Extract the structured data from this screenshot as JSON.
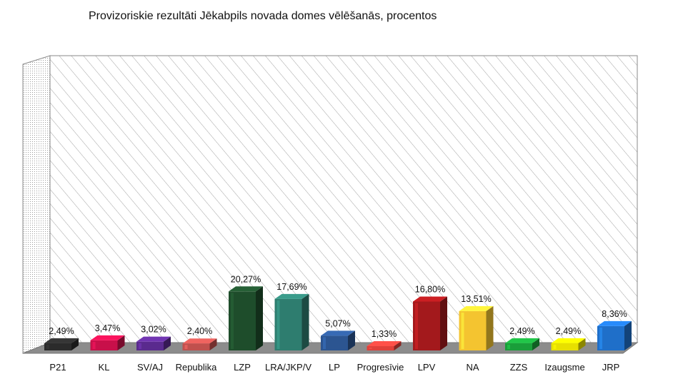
{
  "chart_data": {
    "type": "bar",
    "title": "Provizoriskie rezultāti Jēkabpils novada domes vēlēšanās, procentos",
    "xlabel": "",
    "ylabel": "",
    "ylim": [
      0,
      100
    ],
    "grid": false,
    "legend": "none",
    "categories": [
      "P21",
      "KL",
      "SV/AJ",
      "Republika",
      "LZP",
      "LRA/JKP/V",
      "LP",
      "Progresīvie",
      "LPV",
      "NA",
      "ZZS",
      "Izaugsme",
      "JRP"
    ],
    "values": [
      2.49,
      3.47,
      3.02,
      2.4,
      20.27,
      17.69,
      5.07,
      1.33,
      16.8,
      13.51,
      2.49,
      2.49,
      8.36
    ],
    "value_labels": [
      "2,49%",
      "3,47%",
      "3,02%",
      "2,40%",
      "20,27%",
      "17,69%",
      "5,07%",
      "1,33%",
      "16,80%",
      "13,51%",
      "2,49%",
      "2,49%",
      "8,36%"
    ],
    "colors": [
      "#2b2b2b",
      "#c8104a",
      "#5a2a8e",
      "#c0504d",
      "#1e4d2b",
      "#2e7d6f",
      "#2c5591",
      "#e0413a",
      "#a3191c",
      "#f4c430",
      "#1a9e3a",
      "#e8e000",
      "#1f6fc9"
    ]
  }
}
